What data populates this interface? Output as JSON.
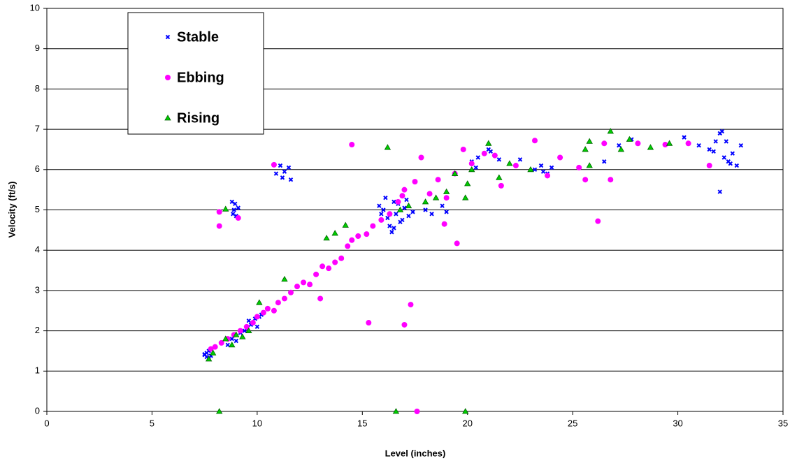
{
  "chart_data": {
    "type": "scatter",
    "x_label": "Level (inches)",
    "y_label": "Velocity (ft/s)",
    "xlim": [
      0,
      35
    ],
    "xticks": [
      0,
      5,
      10,
      15,
      20,
      25,
      30,
      35
    ],
    "ylim": [
      0,
      10
    ],
    "yticks": [
      0,
      1,
      2,
      3,
      4,
      5,
      6,
      7,
      8,
      9,
      10
    ],
    "grid": true,
    "legend": "upper left",
    "series": [
      {
        "name": "Stable",
        "color": "#0000ff",
        "marker": "x",
        "x": [
          7.5,
          7.6,
          7.7,
          7.6,
          7.8,
          7.5,
          7.7,
          8.6,
          8.8,
          9.0,
          9.2,
          9.4,
          9.5,
          9.7,
          9.8,
          9.9,
          10.0,
          10.1,
          9.6,
          10.2,
          8.8,
          8.9,
          9.0,
          8.95,
          9.1,
          8.85,
          10.9,
          11.1,
          11.3,
          11.5,
          11.2,
          11.6,
          15.8,
          16.0,
          16.2,
          16.3,
          16.5,
          16.6,
          16.8,
          17.0,
          17.2,
          17.4,
          16.1,
          16.4,
          16.7,
          16.9,
          17.1,
          15.9,
          16.5,
          18.0,
          18.3,
          18.8,
          19.0,
          20.2,
          20.5,
          20.8,
          21.0,
          21.3,
          21.5,
          20.4,
          21.1,
          22.5,
          23.2,
          23.5,
          23.8,
          24.0,
          23.6,
          26.5,
          27.2,
          27.8,
          30.3,
          31.0,
          31.5,
          31.8,
          32.0,
          32.2,
          32.4,
          32.6,
          32.8,
          33.0,
          31.7,
          32.1,
          32.5,
          32.3,
          32.0
        ],
        "values": [
          1.4,
          1.35,
          1.3,
          1.45,
          1.38,
          1.42,
          1.5,
          1.65,
          1.8,
          1.75,
          1.95,
          2.0,
          2.05,
          2.15,
          2.2,
          2.3,
          2.1,
          2.35,
          2.25,
          2.4,
          5.2,
          5.0,
          4.85,
          5.15,
          5.05,
          4.9,
          5.9,
          6.1,
          5.95,
          6.05,
          5.8,
          5.75,
          5.1,
          5.0,
          4.8,
          4.6,
          5.2,
          4.9,
          4.7,
          5.05,
          4.85,
          4.95,
          5.3,
          4.45,
          5.15,
          4.75,
          5.25,
          4.9,
          4.55,
          5.0,
          4.9,
          5.1,
          4.95,
          6.2,
          6.3,
          6.4,
          6.5,
          6.35,
          6.25,
          6.05,
          6.45,
          6.25,
          6.0,
          6.1,
          5.9,
          6.05,
          5.95,
          6.2,
          6.6,
          6.75,
          6.8,
          6.6,
          6.5,
          6.7,
          6.9,
          6.3,
          6.2,
          6.4,
          6.1,
          6.6,
          6.45,
          6.95,
          6.15,
          6.7,
          5.45
        ]
      },
      {
        "name": "Ebbing",
        "color": "#ff00ff",
        "marker": "circle",
        "x": [
          7.8,
          8.0,
          8.3,
          8.6,
          8.9,
          9.2,
          9.5,
          9.8,
          10.0,
          10.3,
          10.5,
          10.8,
          11.0,
          11.3,
          11.6,
          11.9,
          12.2,
          12.5,
          12.8,
          13.1,
          13.4,
          13.7,
          14.0,
          14.3,
          14.5,
          14.8,
          15.2,
          15.5,
          15.9,
          16.3,
          16.7,
          17.0,
          17.5,
          17.8,
          18.2,
          18.6,
          19.0,
          19.4,
          19.8,
          20.2,
          20.8,
          21.3,
          21.6,
          22.3,
          23.2,
          23.8,
          24.4,
          25.3,
          25.6,
          26.5,
          26.8,
          28.1,
          29.4,
          30.5,
          31.5,
          8.2,
          8.2,
          9.1,
          10.8,
          14.5,
          13.0,
          15.3,
          17.0,
          17.3,
          17.6,
          19.5,
          26.2,
          18.9,
          16.9
        ],
        "values": [
          1.55,
          1.6,
          1.7,
          1.8,
          1.9,
          2.0,
          2.1,
          2.2,
          2.35,
          2.45,
          2.55,
          2.5,
          2.7,
          2.8,
          2.95,
          3.1,
          3.2,
          3.15,
          3.4,
          3.6,
          3.55,
          3.7,
          3.8,
          4.1,
          4.25,
          4.35,
          4.4,
          4.6,
          4.75,
          4.9,
          5.2,
          5.5,
          5.7,
          6.3,
          5.4,
          5.75,
          5.3,
          5.9,
          6.5,
          6.15,
          6.4,
          6.35,
          5.6,
          6.1,
          6.72,
          5.85,
          6.3,
          6.05,
          5.75,
          6.65,
          5.75,
          6.65,
          6.62,
          6.65,
          6.1,
          4.6,
          4.95,
          4.8,
          6.12,
          6.62,
          2.8,
          2.2,
          2.15,
          2.65,
          0,
          4.17,
          4.72,
          4.65,
          5.35
        ]
      },
      {
        "name": "Rising",
        "color": "#00cc00",
        "marker": "triangle",
        "x": [
          7.7,
          7.9,
          8.5,
          8.8,
          9.0,
          9.3,
          9.6,
          10.1,
          11.3,
          13.3,
          13.7,
          14.2,
          16.2,
          16.8,
          17.2,
          18.0,
          18.5,
          19.0,
          19.4,
          19.9,
          20.0,
          20.2,
          21.0,
          21.5,
          22.0,
          23.0,
          25.6,
          25.8,
          25.8,
          26.8,
          27.3,
          27.7,
          28.7,
          29.6,
          8.5,
          8.2,
          16.6,
          19.9
        ],
        "values": [
          1.3,
          1.45,
          1.8,
          1.65,
          1.9,
          1.85,
          2.0,
          2.7,
          3.28,
          4.3,
          4.42,
          4.62,
          6.55,
          5.0,
          5.1,
          5.2,
          5.3,
          5.45,
          5.9,
          5.3,
          5.65,
          6.0,
          6.65,
          5.8,
          6.15,
          6.0,
          6.5,
          6.7,
          6.1,
          6.95,
          6.5,
          6.75,
          6.55,
          6.65,
          5.02,
          0,
          0,
          0
        ]
      }
    ]
  }
}
